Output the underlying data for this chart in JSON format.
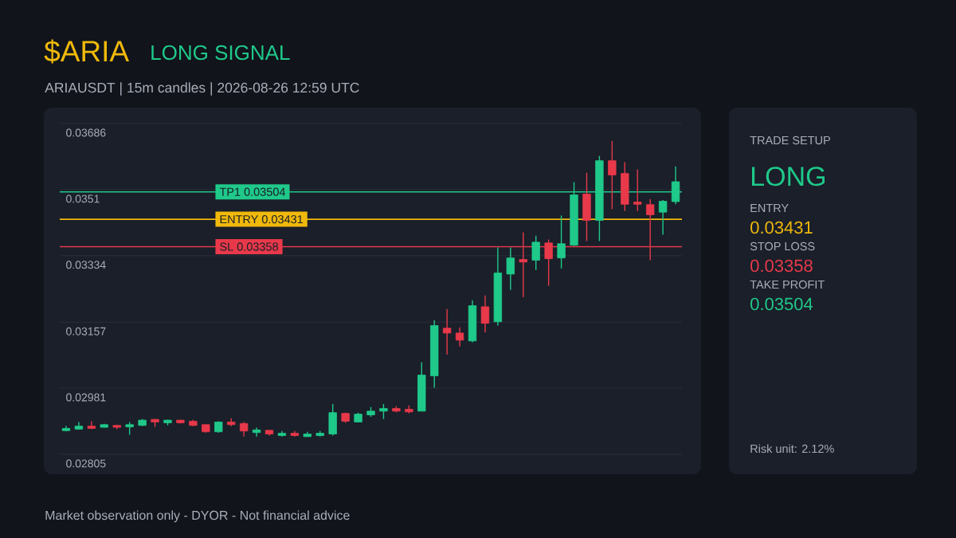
{
  "chart_data": [
    {
      "type": "candlestick",
      "title": "$ARIA",
      "subtitle": "ARIAUSDT | 15m candles | 2026-08-26 12:59 UTC",
      "annotations": [
        "LONG SIGNAL",
        "Market observation only - DYOR - Not financial advice"
      ],
      "categories": [
        null,
        null,
        null,
        null,
        null,
        null,
        null,
        null,
        null,
        null,
        null,
        null,
        null,
        null,
        null,
        null,
        null,
        null,
        null,
        null,
        null,
        null,
        null,
        null,
        null,
        null,
        null,
        null,
        null,
        null,
        null,
        null,
        null,
        null,
        null,
        null,
        null,
        null,
        null,
        null,
        null,
        null,
        null,
        null,
        null,
        null,
        null,
        null,
        null
      ],
      "ohlc": [
        [
          0.02868,
          0.02881,
          0.02866,
          0.02874
        ],
        [
          0.02872,
          0.02891,
          0.02871,
          0.0288
        ],
        [
          0.0288,
          0.02893,
          0.02872,
          0.02874
        ],
        [
          0.02877,
          0.02886,
          0.02876,
          0.02884
        ],
        [
          0.02882,
          0.02882,
          0.02872,
          0.02877
        ],
        [
          0.02878,
          0.02891,
          0.02857,
          0.02884
        ],
        [
          0.02882,
          0.02899,
          0.0288,
          0.02896
        ],
        [
          0.02898,
          0.02899,
          0.02878,
          0.02891
        ],
        [
          0.02889,
          0.02897,
          0.02882,
          0.02896
        ],
        [
          0.02896,
          0.02897,
          0.02887,
          0.02889
        ],
        [
          0.02893,
          0.02897,
          0.0288,
          0.02882
        ],
        [
          0.02884,
          0.02884,
          0.02863,
          0.02865
        ],
        [
          0.02865,
          0.02893,
          0.02863,
          0.02891
        ],
        [
          0.02891,
          0.02901,
          0.0288,
          0.02884
        ],
        [
          0.02887,
          0.02891,
          0.02852,
          0.02867
        ],
        [
          0.02863,
          0.02876,
          0.02852,
          0.0287
        ],
        [
          0.02869,
          0.02869,
          0.02855,
          0.02859
        ],
        [
          0.02855,
          0.02867,
          0.02852,
          0.02861
        ],
        [
          0.02861,
          0.02867,
          0.02852,
          0.02855
        ],
        [
          0.02852,
          0.02865,
          0.02852,
          0.02859
        ],
        [
          0.02855,
          0.02867,
          0.02852,
          0.02861
        ],
        [
          0.02859,
          0.02939,
          0.02855,
          0.02916
        ],
        [
          0.02914,
          0.02916,
          0.02889,
          0.02893
        ],
        [
          0.02891,
          0.02916,
          0.0289,
          0.02912
        ],
        [
          0.0291,
          0.02931,
          0.02905,
          0.0292
        ],
        [
          0.0292,
          0.02939,
          0.02899,
          0.02927
        ],
        [
          0.02927,
          0.02933,
          0.02917,
          0.0292
        ],
        [
          0.02925,
          0.02935,
          0.02914,
          0.02918
        ],
        [
          0.0292,
          0.0305,
          0.0292,
          0.03016
        ],
        [
          0.03014,
          0.03162,
          0.02982,
          0.03148
        ],
        [
          0.03141,
          0.03192,
          0.03071,
          0.03128
        ],
        [
          0.03128,
          0.03143,
          0.03092,
          0.03109
        ],
        [
          0.03107,
          0.03215,
          0.03103,
          0.03201
        ],
        [
          0.03198,
          0.03228,
          0.0313,
          0.03154
        ],
        [
          0.03158,
          0.03356,
          0.03148,
          0.03288
        ],
        [
          0.03285,
          0.03356,
          0.03243,
          0.03328
        ],
        [
          0.03324,
          0.03396,
          0.03224,
          0.03317
        ],
        [
          0.03322,
          0.03387,
          0.03296,
          0.0337
        ],
        [
          0.03368,
          0.03377,
          0.03254,
          0.03326
        ],
        [
          0.03328,
          0.03441,
          0.033,
          0.03366
        ],
        [
          0.03362,
          0.0353,
          0.0336,
          0.03496
        ],
        [
          0.03498,
          0.03555,
          0.03373,
          0.03428
        ],
        [
          0.03428,
          0.036,
          0.03373,
          0.03587
        ],
        [
          0.03587,
          0.0364,
          0.03458,
          0.03549
        ],
        [
          0.03553,
          0.03583,
          0.03453,
          0.03471
        ],
        [
          0.03477,
          0.03564,
          0.03453,
          0.03471
        ],
        [
          0.0347,
          0.03485,
          0.03322,
          0.03443
        ],
        [
          0.0345,
          0.03482,
          0.0339,
          0.03479
        ],
        [
          0.03478,
          0.03572,
          0.03471,
          0.03531
        ]
      ],
      "ylim": [
        0.02805,
        0.03686
      ],
      "yticks": [
        0.02805,
        0.02981,
        0.03157,
        0.03334,
        0.0351,
        0.03686
      ],
      "tick_labels": "y",
      "grid": "y",
      "ref_lines": [
        {
          "axis": "y",
          "value": 0.03504,
          "label": "TP1 0.03504",
          "color": "#1fc98a"
        },
        {
          "axis": "y",
          "value": 0.03431,
          "label": "ENTRY 0.03431",
          "color": "#f0b90b"
        },
        {
          "axis": "y",
          "value": 0.03358,
          "label": "SL 0.03358",
          "color": "#e8394a"
        }
      ]
    },
    {
      "type": "other",
      "title": "TRADE SETUP",
      "annotations": [
        "LONG",
        "ENTRY",
        "0.03431",
        "STOP LOSS",
        "0.03358",
        "TAKE PROFIT",
        "0.03504",
        "Risk unit: 2.12%"
      ]
    }
  ]
}
